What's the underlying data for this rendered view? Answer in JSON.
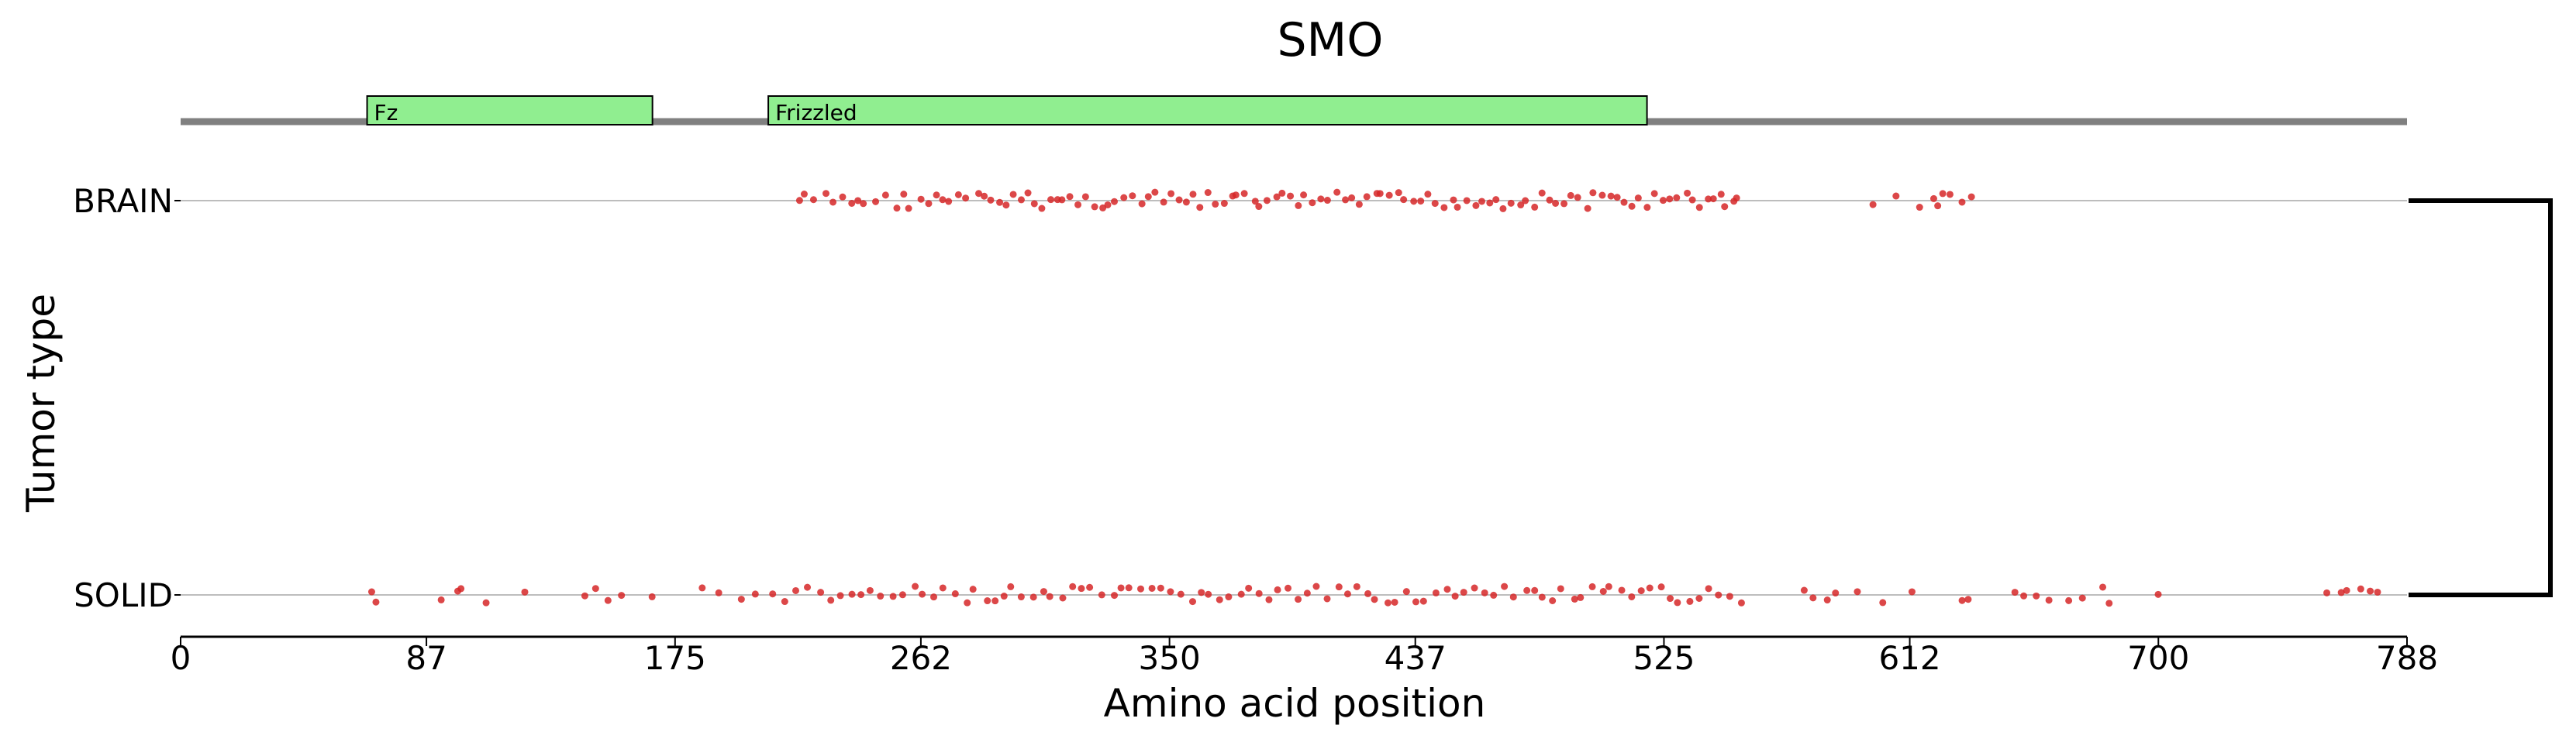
{
  "chart_data": {
    "type": "scatter",
    "title": "SMO",
    "xlabel": "Amino acid position",
    "ylabel": "Tumor type",
    "xlim": [
      0,
      788
    ],
    "xticks": [
      0,
      87,
      175,
      262,
      350,
      437,
      525,
      612,
      700,
      788
    ],
    "categories": [
      "BRAIN",
      "SOLID"
    ],
    "point_color": "#d62728",
    "domain_color": "#90ee90",
    "domains": [
      {
        "name": "Fz",
        "start": 66,
        "end": 167
      },
      {
        "name": "Frizzled",
        "start": 208,
        "end": 519
      }
    ],
    "series": [
      {
        "values": [
          219,
          221,
          224,
          228,
          231,
          234,
          238,
          240,
          242,
          246,
          250,
          253,
          256,
          258,
          262,
          265,
          267,
          270,
          272,
          275,
          278,
          282,
          284,
          287,
          290,
          292,
          295,
          298,
          300,
          302,
          305,
          308,
          310,
          312,
          315,
          318,
          320,
          323,
          326,
          328,
          331,
          334,
          337,
          340,
          342,
          345,
          348,
          350,
          353,
          356,
          358,
          361,
          364,
          366,
          369,
          372,
          374,
          377,
          380,
          382,
          385,
          388,
          390,
          393,
          396,
          398,
          401,
          404,
          406,
          409,
          412,
          414,
          417,
          420,
          423,
          425,
          428,
          431,
          433,
          436,
          439,
          441,
          444,
          447,
          450,
          452,
          455,
          458,
          460,
          463,
          466,
          468,
          471,
          474,
          476,
          479,
          482,
          484,
          487,
          490,
          492,
          495,
          498,
          500,
          503,
          506,
          508,
          511,
          514,
          516,
          519,
          522,
          525,
          527,
          530,
          533,
          535,
          538,
          541,
          543,
          545,
          547,
          550,
          551,
          599,
          607,
          615,
          620,
          622,
          624,
          626,
          630,
          634
        ]
      },
      {
        "values": [
          68,
          69,
          92,
          98,
          99,
          108,
          122,
          143,
          147,
          151,
          156,
          167,
          185,
          190,
          198,
          203,
          210,
          214,
          218,
          222,
          226,
          230,
          234,
          238,
          241,
          244,
          248,
          252,
          256,
          260,
          263,
          267,
          270,
          274,
          278,
          281,
          285,
          288,
          291,
          294,
          298,
          302,
          305,
          308,
          312,
          316,
          319,
          322,
          326,
          330,
          333,
          336,
          340,
          344,
          347,
          350,
          354,
          358,
          361,
          364,
          368,
          371,
          375,
          378,
          382,
          385,
          388,
          392,
          396,
          399,
          402,
          406,
          410,
          413,
          416,
          420,
          423,
          427,
          430,
          434,
          437,
          440,
          444,
          448,
          451,
          454,
          458,
          462,
          465,
          468,
          472,
          476,
          479,
          482,
          486,
          489,
          493,
          496,
          500,
          503,
          506,
          510,
          514,
          517,
          520,
          524,
          527,
          530,
          534,
          538,
          541,
          544,
          548,
          552,
          575,
          578,
          583,
          586,
          593,
          603,
          613,
          630,
          633,
          649,
          652,
          657,
          661,
          668,
          673,
          680,
          683,
          700,
          760,
          765,
          767,
          772,
          775,
          778
        ]
      }
    ]
  }
}
